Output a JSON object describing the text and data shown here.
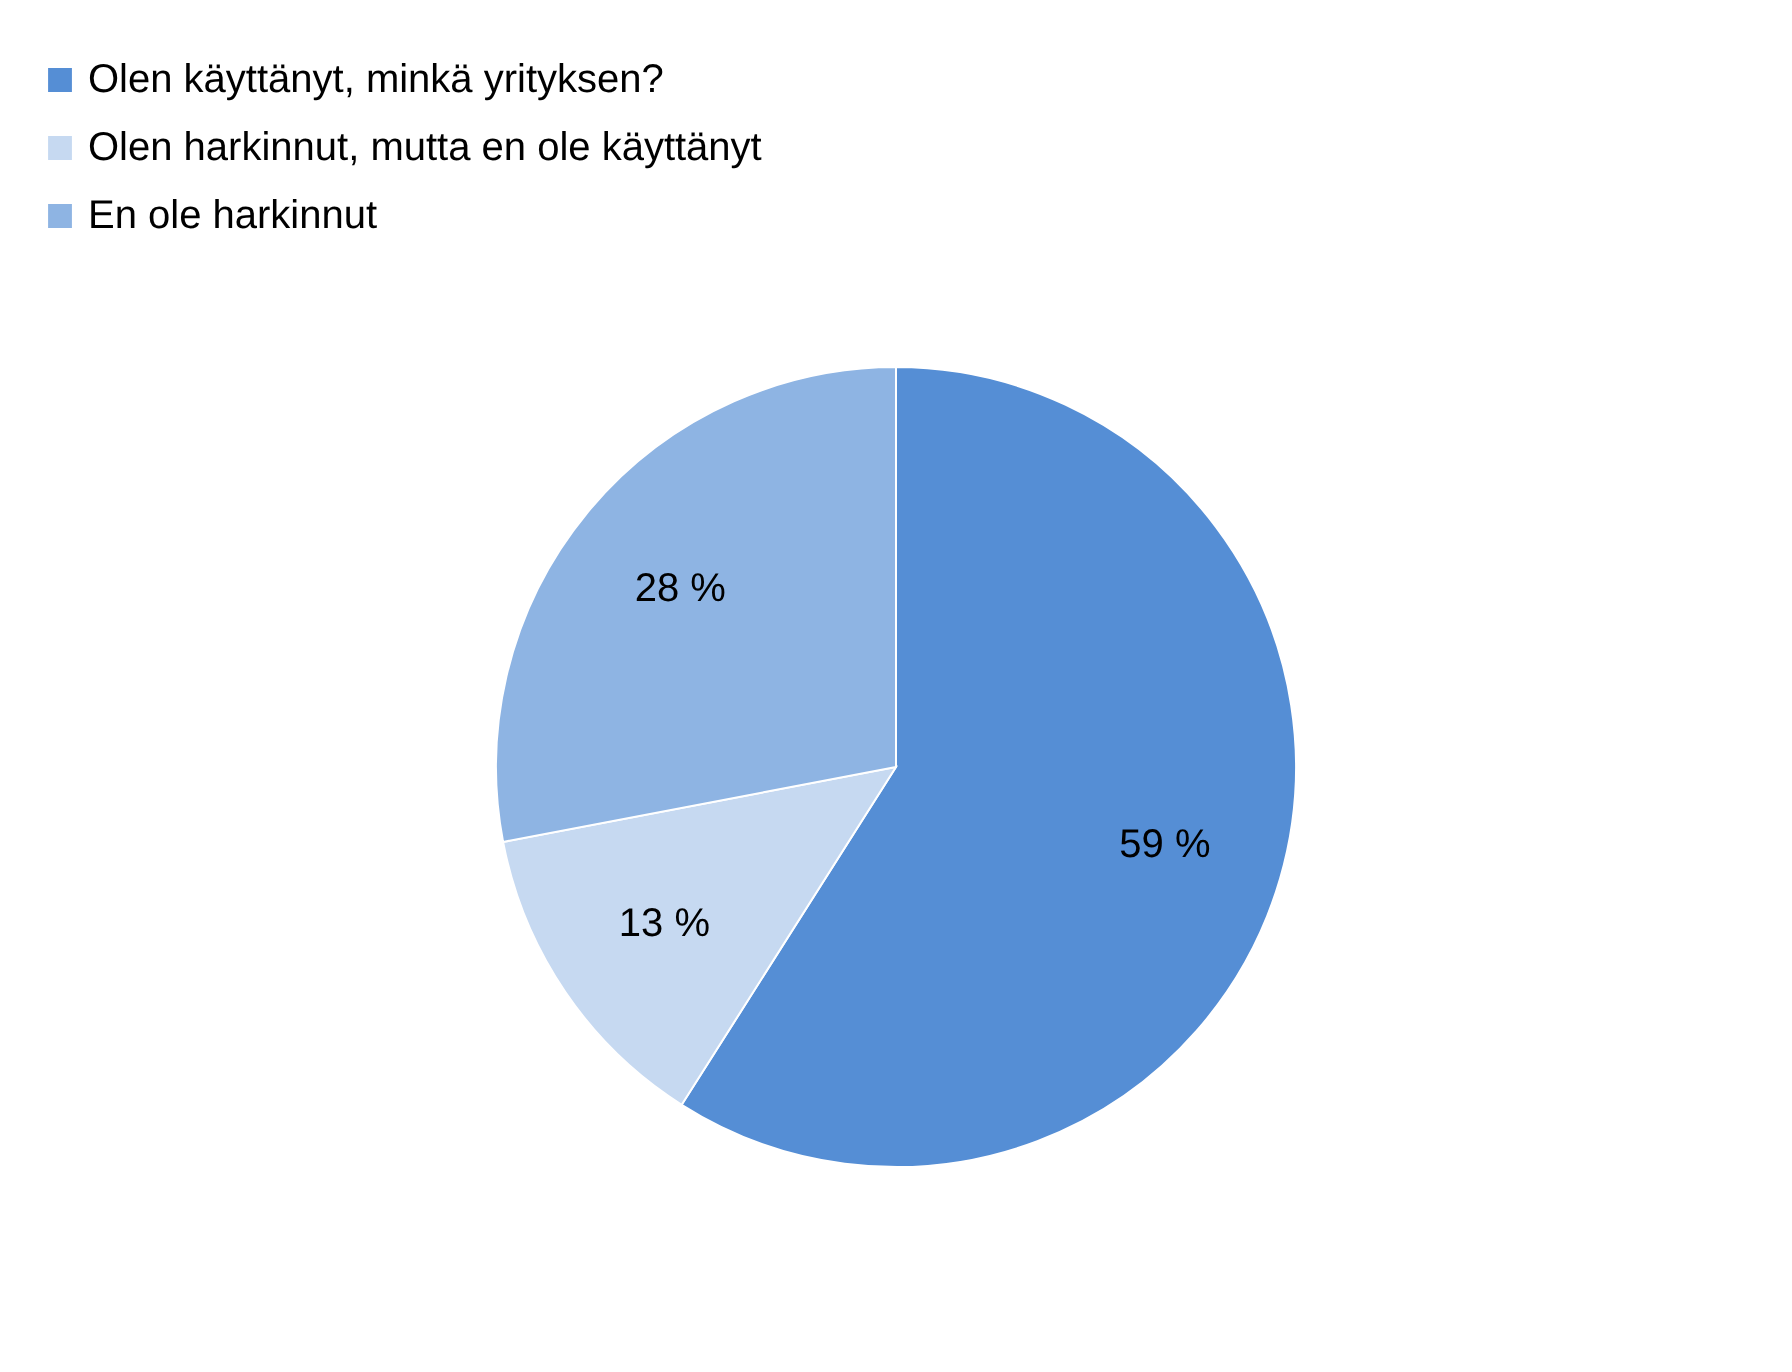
{
  "chart_data": {
    "type": "pie",
    "categories": [
      "Olen käyttänyt, minkä yrityksen?",
      "Olen harkinnut, mutta en ole käyttänyt",
      "En ole harkinnut"
    ],
    "values": [
      59,
      13,
      28
    ],
    "colors": [
      "#558ed5",
      "#c6d9f1",
      "#8eb4e3"
    ],
    "value_labels": [
      "59 %",
      "13 %",
      "28 %"
    ],
    "legend": "top"
  }
}
